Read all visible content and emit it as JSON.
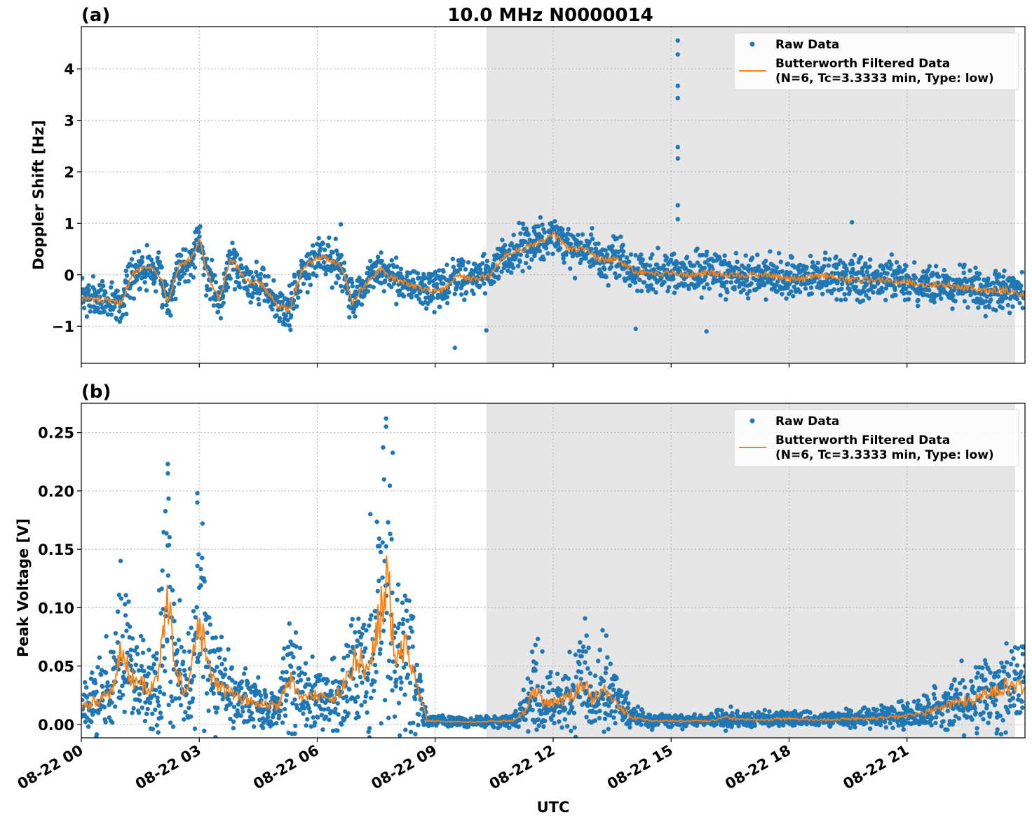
{
  "figure": {
    "title": "10.0 MHz N0000014",
    "xlabel": "UTC",
    "colors": {
      "raw": "#1f77b4",
      "filtered": "#ff7f0e",
      "night_shading": "#e6e6e6",
      "grid": "#b0b0b0"
    }
  },
  "chart_data": [
    {
      "type": "scatter",
      "panel_label": "(a)",
      "ylabel": "Doppler Shift [Hz]",
      "x_unit": "hours since 08-22 00:00 UTC",
      "xlim": [
        0,
        24
      ],
      "ylim": [
        -1.72,
        4.82
      ],
      "yticks": [
        -1,
        0,
        1,
        2,
        3,
        4
      ],
      "ytick_labels": [
        "−1",
        "0",
        "1",
        "2",
        "3",
        "4"
      ],
      "xticks": [
        0,
        3,
        6,
        9,
        12,
        15,
        18,
        21
      ],
      "xtick_labels": [],
      "grid": true,
      "legend_position": "upper-right",
      "shaded_region": [
        10.3,
        23.75
      ],
      "series": [
        {
          "name": "Raw Data",
          "kind": "points",
          "spread": 0.28,
          "x": [
            0,
            0.5,
            1.0,
            1.3,
            1.6,
            2.0,
            2.2,
            2.5,
            2.8,
            3.0,
            3.2,
            3.5,
            3.8,
            4.2,
            4.6,
            5.0,
            5.3,
            5.6,
            6.0,
            6.3,
            6.6,
            6.9,
            7.2,
            7.6,
            8.0,
            8.4,
            8.8,
            9.2,
            9.6,
            10.0,
            10.4,
            10.8,
            11.2,
            11.6,
            12.0,
            12.4,
            12.8,
            13.2,
            13.6,
            14.0,
            14.5,
            15.0,
            15.5,
            16.0,
            16.5,
            17.0,
            17.5,
            18.0,
            18.5,
            19.0,
            19.5,
            20.0,
            20.5,
            21.0,
            21.5,
            22.0,
            22.5,
            23.0,
            23.5,
            24.0
          ],
          "y": [
            -0.45,
            -0.5,
            -0.55,
            0.0,
            0.2,
            0.0,
            -0.5,
            0.2,
            0.3,
            0.7,
            0.0,
            -0.5,
            0.3,
            -0.1,
            -0.2,
            -0.6,
            -0.7,
            0.1,
            0.35,
            0.3,
            0.2,
            -0.55,
            -0.2,
            0.1,
            -0.1,
            -0.2,
            -0.3,
            -0.3,
            0.0,
            -0.1,
            0.0,
            0.4,
            0.5,
            0.6,
            0.8,
            0.5,
            0.5,
            0.3,
            0.3,
            0.1,
            0.0,
            0.05,
            0.0,
            0.05,
            0.0,
            0.0,
            0.0,
            -0.1,
            -0.05,
            0.0,
            -0.1,
            -0.1,
            -0.1,
            -0.15,
            -0.2,
            -0.2,
            -0.25,
            -0.3,
            -0.3,
            -0.4
          ],
          "outliers_x": [
            15.17,
            15.17,
            15.17,
            15.17,
            15.17,
            15.17,
            15.17,
            15.17,
            9.5,
            10.3,
            19.6,
            6.6,
            15.9,
            14.1
          ],
          "outliers_y": [
            4.55,
            4.28,
            3.67,
            3.43,
            2.48,
            2.26,
            1.35,
            1.08,
            -1.42,
            -1.08,
            1.02,
            0.98,
            -1.1,
            -1.05
          ]
        },
        {
          "name": "Butterworth Filtered Data\n(N=6, Tc=3.3333 min, Type: low)",
          "kind": "line",
          "x": [
            0,
            0.5,
            1.0,
            1.3,
            1.6,
            2.0,
            2.2,
            2.5,
            2.8,
            3.0,
            3.2,
            3.5,
            3.8,
            4.2,
            4.6,
            5.0,
            5.3,
            5.6,
            6.0,
            6.3,
            6.6,
            6.9,
            7.2,
            7.6,
            8.0,
            8.4,
            8.8,
            9.2,
            9.6,
            10.0,
            10.4,
            10.8,
            11.2,
            11.6,
            12.0,
            12.4,
            12.8,
            13.2,
            13.6,
            14.0,
            14.5,
            15.0,
            15.5,
            16.0,
            16.5,
            17.0,
            17.5,
            18.0,
            18.5,
            19.0,
            19.5,
            20.0,
            20.5,
            21.0,
            21.5,
            22.0,
            22.5,
            23.0,
            23.5,
            24.0
          ],
          "y": [
            -0.45,
            -0.5,
            -0.55,
            0.0,
            0.2,
            0.0,
            -0.5,
            0.2,
            0.3,
            0.7,
            0.0,
            -0.5,
            0.3,
            -0.1,
            -0.2,
            -0.6,
            -0.7,
            0.1,
            0.35,
            0.3,
            0.2,
            -0.55,
            -0.2,
            0.1,
            -0.1,
            -0.2,
            -0.3,
            -0.3,
            0.0,
            -0.1,
            0.0,
            0.4,
            0.5,
            0.6,
            0.8,
            0.5,
            0.5,
            0.3,
            0.3,
            0.1,
            0.0,
            0.05,
            0.0,
            0.05,
            0.0,
            0.0,
            0.0,
            -0.1,
            -0.05,
            0.0,
            -0.1,
            -0.1,
            -0.1,
            -0.15,
            -0.2,
            -0.2,
            -0.25,
            -0.3,
            -0.3,
            -0.4
          ]
        }
      ]
    },
    {
      "type": "scatter",
      "panel_label": "(b)",
      "ylabel": "Peak Voltage [V]",
      "x_unit": "hours since 08-22 00:00 UTC",
      "xlim": [
        0,
        24
      ],
      "ylim": [
        -0.0115,
        0.275
      ],
      "yticks": [
        0.0,
        0.05,
        0.1,
        0.15,
        0.2,
        0.25
      ],
      "ytick_labels": [
        "0.00",
        "0.05",
        "0.10",
        "0.15",
        "0.20",
        "0.25"
      ],
      "xticks": [
        0,
        3,
        6,
        9,
        12,
        15,
        18,
        21
      ],
      "xtick_labels": [
        "08-22 00",
        "08-22 03",
        "08-22 06",
        "08-22 09",
        "08-22 12",
        "08-22 15",
        "08-22 18",
        "08-22 21"
      ],
      "grid": true,
      "legend_position": "upper-right",
      "shaded_region": [
        10.3,
        23.75
      ],
      "series": [
        {
          "name": "Raw Data",
          "kind": "points",
          "spread": 0.55,
          "x": [
            0,
            0.5,
            0.8,
            1.0,
            1.3,
            1.5,
            1.8,
            2.0,
            2.2,
            2.4,
            2.7,
            3.0,
            3.3,
            3.6,
            4.0,
            4.5,
            5.0,
            5.3,
            5.6,
            6.0,
            6.4,
            6.8,
            7.0,
            7.3,
            7.5,
            7.8,
            8.0,
            8.2,
            8.5,
            8.8,
            9.2,
            9.6,
            10.0,
            10.5,
            11.0,
            11.3,
            11.5,
            11.8,
            12.2,
            12.6,
            12.8,
            13.0,
            13.3,
            13.6,
            14.0,
            14.5,
            15.0,
            15.5,
            16.0,
            16.3,
            16.8,
            17.5,
            18.0,
            18.5,
            19.0,
            19.5,
            20.0,
            20.5,
            21.0,
            21.5,
            22.0,
            22.5,
            23.0,
            23.5,
            24.0
          ],
          "y": [
            0.014,
            0.022,
            0.03,
            0.062,
            0.04,
            0.035,
            0.03,
            0.05,
            0.11,
            0.04,
            0.028,
            0.085,
            0.04,
            0.03,
            0.022,
            0.018,
            0.015,
            0.04,
            0.022,
            0.025,
            0.02,
            0.04,
            0.06,
            0.045,
            0.075,
            0.125,
            0.05,
            0.07,
            0.035,
            0.003,
            0.0025,
            0.002,
            0.002,
            0.0025,
            0.003,
            0.012,
            0.03,
            0.018,
            0.02,
            0.028,
            0.035,
            0.02,
            0.032,
            0.018,
            0.006,
            0.003,
            0.003,
            0.003,
            0.003,
            0.006,
            0.004,
            0.004,
            0.005,
            0.004,
            0.004,
            0.005,
            0.005,
            0.006,
            0.007,
            0.01,
            0.016,
            0.02,
            0.025,
            0.032,
            0.03
          ],
          "outliers_x": [
            2.2,
            2.2,
            7.75,
            7.75,
            2.95,
            2.95,
            1.0,
            7.35,
            12.85,
            13.35,
            11.55
          ],
          "outliers_y": [
            0.223,
            0.215,
            0.262,
            0.255,
            0.198,
            0.19,
            0.14,
            0.18,
            0.076,
            0.076,
            0.068
          ]
        },
        {
          "name": "Butterworth Filtered Data\n(N=6, Tc=3.3333 min, Type: low)",
          "kind": "line",
          "x": [
            0,
            0.5,
            0.8,
            1.0,
            1.3,
            1.5,
            1.8,
            2.0,
            2.2,
            2.4,
            2.7,
            3.0,
            3.3,
            3.6,
            4.0,
            4.5,
            5.0,
            5.3,
            5.6,
            6.0,
            6.4,
            6.8,
            7.0,
            7.3,
            7.5,
            7.8,
            8.0,
            8.2,
            8.5,
            8.8,
            9.2,
            9.6,
            10.0,
            10.5,
            11.0,
            11.3,
            11.5,
            11.8,
            12.2,
            12.6,
            12.8,
            13.0,
            13.3,
            13.6,
            14.0,
            14.5,
            15.0,
            15.5,
            16.0,
            16.3,
            16.8,
            17.5,
            18.0,
            18.5,
            19.0,
            19.5,
            20.0,
            20.5,
            21.0,
            21.5,
            22.0,
            22.5,
            23.0,
            23.5,
            24.0
          ],
          "y": [
            0.014,
            0.022,
            0.03,
            0.062,
            0.04,
            0.035,
            0.03,
            0.05,
            0.11,
            0.04,
            0.028,
            0.085,
            0.04,
            0.03,
            0.022,
            0.018,
            0.015,
            0.04,
            0.022,
            0.025,
            0.02,
            0.04,
            0.06,
            0.045,
            0.075,
            0.125,
            0.05,
            0.07,
            0.035,
            0.003,
            0.0025,
            0.002,
            0.002,
            0.0025,
            0.003,
            0.012,
            0.03,
            0.018,
            0.02,
            0.028,
            0.035,
            0.02,
            0.032,
            0.018,
            0.006,
            0.003,
            0.003,
            0.003,
            0.003,
            0.006,
            0.004,
            0.004,
            0.005,
            0.004,
            0.004,
            0.005,
            0.005,
            0.006,
            0.007,
            0.01,
            0.016,
            0.02,
            0.025,
            0.032,
            0.03
          ]
        }
      ]
    }
  ]
}
